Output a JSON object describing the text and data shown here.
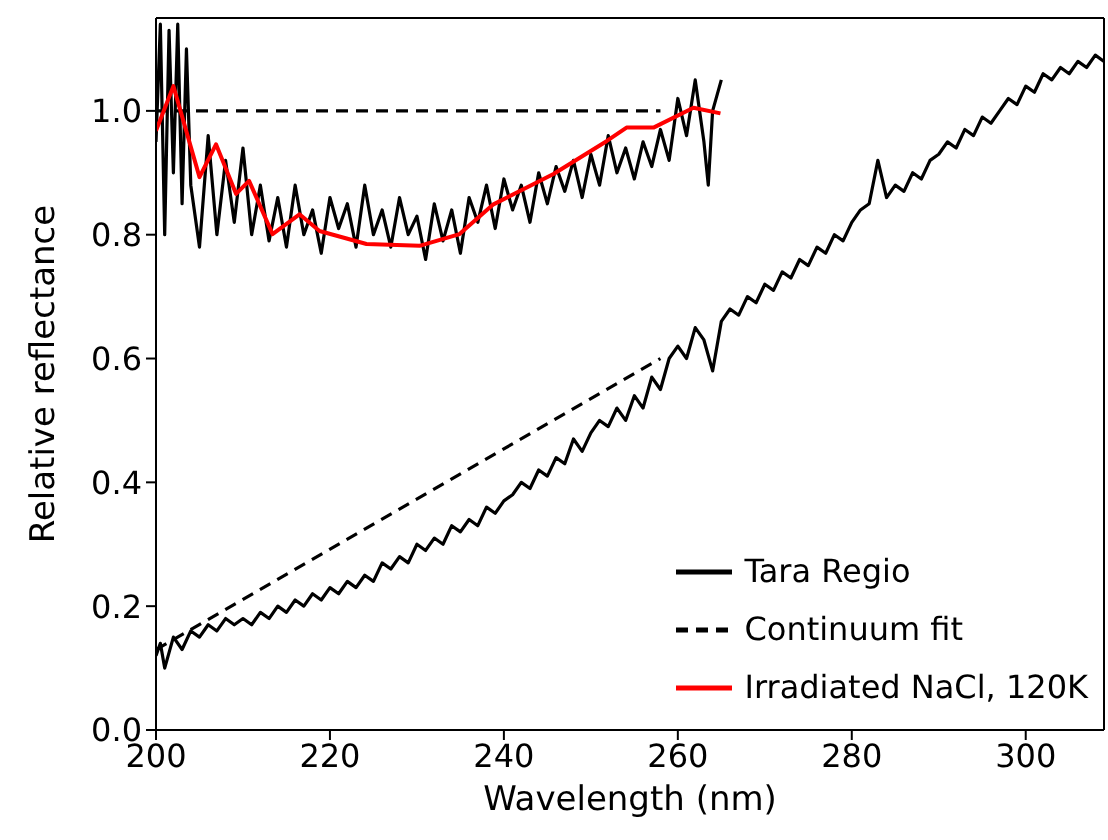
{
  "chart_data": {
    "type": "line",
    "xlabel": "Wavelength (nm)",
    "ylabel": "Relative reflectance",
    "xlim": [
      200,
      309
    ],
    "xticks": [
      200,
      220,
      240,
      260,
      280,
      300
    ],
    "ylim": [
      0,
      1.15
    ],
    "yticks": [
      {
        "value": 0,
        "label": "0.0"
      },
      {
        "value": 0.2,
        "label": "0.2"
      },
      {
        "value": 0.4,
        "label": "0.4"
      },
      {
        "value": 0.6,
        "label": "0.6"
      },
      {
        "value": 0.8,
        "label": "0.8"
      },
      {
        "value": 1,
        "label": "1.0"
      }
    ],
    "legend": "bottom right",
    "marker": "none",
    "series": [
      {
        "name": "Tara Regio",
        "color": "#000000",
        "line_style": "solid",
        "x": [
          200,
          200.5,
          201,
          202,
          203,
          204,
          205,
          206,
          207,
          208,
          209,
          210,
          211,
          212,
          213,
          214,
          215,
          216,
          217,
          218,
          219,
          220,
          221,
          222,
          223,
          224,
          225,
          226,
          227,
          228,
          229,
          230,
          231,
          232,
          233,
          234,
          235,
          236,
          237,
          238,
          239,
          240,
          241,
          242,
          243,
          244,
          245,
          246,
          247,
          248,
          249,
          250,
          251,
          252,
          253,
          254,
          255,
          256,
          257,
          258,
          259,
          260,
          261,
          262,
          263,
          264,
          265,
          266,
          267,
          268,
          269,
          270,
          271,
          272,
          273,
          274,
          275,
          276,
          277,
          278,
          279,
          280,
          281,
          282,
          283,
          284,
          285,
          286,
          287,
          288,
          289,
          290,
          291,
          292,
          293,
          294,
          295,
          296,
          297,
          298,
          299,
          300,
          301,
          302,
          303,
          304,
          305,
          306,
          307,
          308,
          309
        ],
        "values": [
          0.12,
          0.14,
          0.1,
          0.15,
          0.13,
          0.16,
          0.15,
          0.17,
          0.16,
          0.18,
          0.17,
          0.18,
          0.17,
          0.19,
          0.18,
          0.2,
          0.19,
          0.21,
          0.2,
          0.22,
          0.21,
          0.23,
          0.22,
          0.24,
          0.23,
          0.25,
          0.24,
          0.27,
          0.26,
          0.28,
          0.27,
          0.3,
          0.29,
          0.31,
          0.3,
          0.33,
          0.32,
          0.34,
          0.33,
          0.36,
          0.35,
          0.37,
          0.38,
          0.4,
          0.39,
          0.42,
          0.41,
          0.44,
          0.43,
          0.47,
          0.45,
          0.48,
          0.5,
          0.49,
          0.52,
          0.5,
          0.54,
          0.52,
          0.57,
          0.55,
          0.6,
          0.62,
          0.6,
          0.65,
          0.63,
          0.58,
          0.66,
          0.68,
          0.67,
          0.7,
          0.69,
          0.72,
          0.71,
          0.74,
          0.73,
          0.76,
          0.75,
          0.78,
          0.77,
          0.8,
          0.79,
          0.82,
          0.84,
          0.85,
          0.92,
          0.86,
          0.88,
          0.87,
          0.9,
          0.89,
          0.92,
          0.93,
          0.95,
          0.94,
          0.97,
          0.96,
          0.99,
          0.98,
          1,
          1.02,
          1.01,
          1.04,
          1.03,
          1.06,
          1.05,
          1.07,
          1.06,
          1.08,
          1.07,
          1.09,
          1.08
        ]
      },
      {
        "color": "#000000",
        "line_style": "solid",
        "x": [
          200,
          200.5,
          201,
          201.5,
          202,
          202.5,
          203,
          203.5,
          204,
          205,
          206,
          207,
          208,
          209,
          210,
          211,
          212,
          213,
          214,
          215,
          216,
          217,
          218,
          219,
          220,
          221,
          222,
          223,
          224,
          225,
          226,
          227,
          228,
          229,
          230,
          231,
          232,
          233,
          234,
          235,
          236,
          237,
          238,
          239,
          240,
          241,
          242,
          243,
          244,
          245,
          246,
          247,
          248,
          249,
          250,
          251,
          252,
          253,
          254,
          255,
          256,
          257,
          258,
          259,
          260,
          261,
          262,
          263,
          263.5,
          264,
          265
        ],
        "values": [
          0.95,
          1.14,
          0.8,
          1.13,
          0.9,
          1.14,
          0.85,
          1.1,
          0.88,
          0.78,
          0.96,
          0.8,
          0.92,
          0.82,
          0.94,
          0.8,
          0.88,
          0.79,
          0.86,
          0.78,
          0.88,
          0.8,
          0.84,
          0.77,
          0.86,
          0.81,
          0.85,
          0.78,
          0.88,
          0.8,
          0.84,
          0.78,
          0.86,
          0.8,
          0.83,
          0.76,
          0.85,
          0.79,
          0.84,
          0.77,
          0.86,
          0.82,
          0.88,
          0.81,
          0.89,
          0.84,
          0.88,
          0.82,
          0.9,
          0.85,
          0.91,
          0.87,
          0.92,
          0.86,
          0.93,
          0.88,
          0.96,
          0.9,
          0.94,
          0.89,
          0.95,
          0.91,
          0.97,
          0.92,
          1.02,
          0.96,
          1.05,
          0.95,
          0.88,
          1,
          1.05
        ]
      },
      {
        "name": "Continuum fit",
        "color": "#000000",
        "line_style": "dashed",
        "x": [
          200,
          258
        ],
        "values": [
          0.13,
          0.6
        ]
      },
      {
        "color": "#000000",
        "line_style": "dashed",
        "x": [
          200,
          258
        ],
        "values": [
          1,
          1
        ]
      },
      {
        "name": "Irradiated NaCl, 120K",
        "color": "#ff0000",
        "line_style": "solid",
        "x": [
          200,
          202,
          205,
          206.9,
          209.2,
          210.7,
          213.4,
          216.5,
          218.8,
          224.2,
          230.3,
          234.9,
          238.8,
          245.7,
          251.8,
          254.1,
          257.2,
          261.8,
          264.9
        ],
        "values": [
          0.968,
          1.04,
          0.893,
          0.946,
          0.866,
          0.887,
          0.801,
          0.833,
          0.806,
          0.785,
          0.782,
          0.801,
          0.849,
          0.898,
          0.951,
          0.973,
          0.973,
          1.005,
          0.996
        ]
      }
    ]
  }
}
